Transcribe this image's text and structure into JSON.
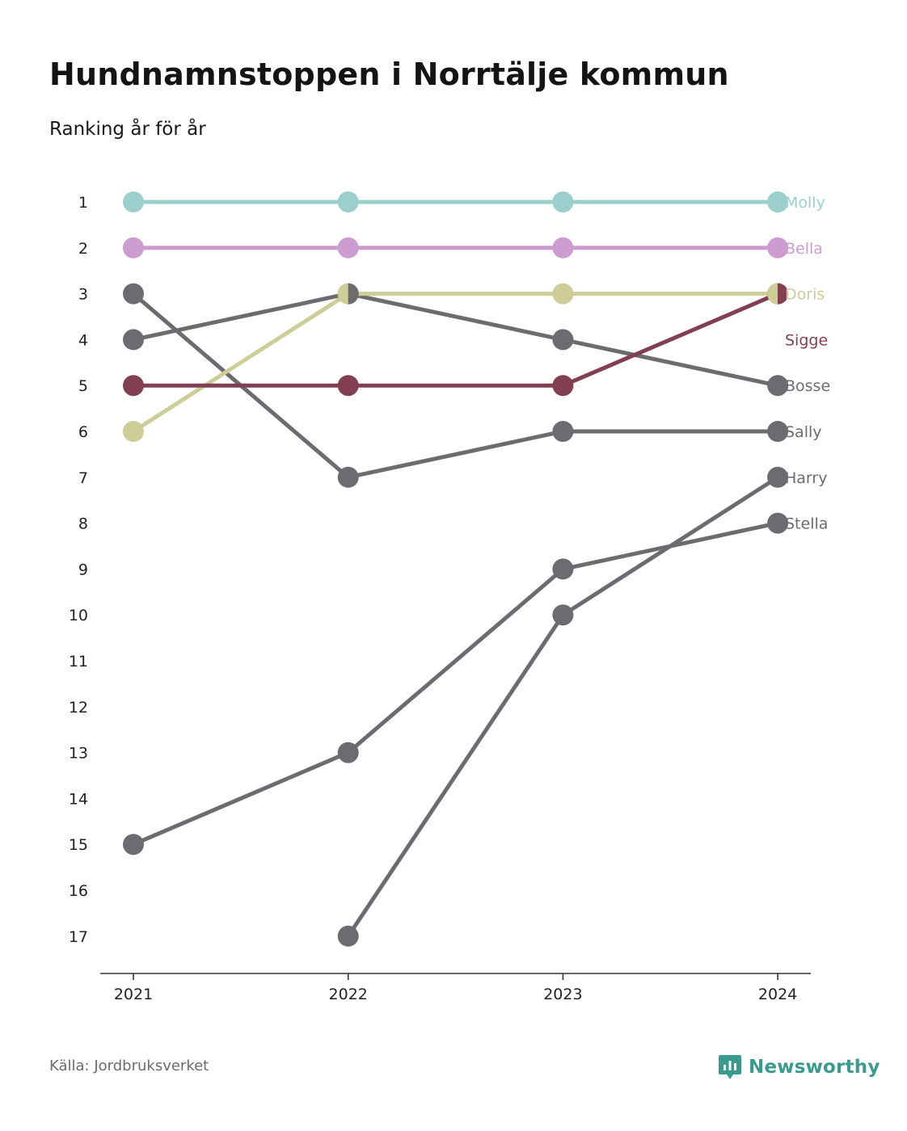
{
  "header": {
    "title": "Hundnamnstoppen i Norrtälje kommun",
    "subtitle": "Ranking år för år"
  },
  "footer": {
    "source": "Källa: Jordbruksverket",
    "brand": "Newsworthy",
    "brand_icon": "newsworthy-logo-icon"
  },
  "colors": {
    "molly": "#9bcfcc",
    "bella": "#cc9bd0",
    "doris": "#cdcd97",
    "sigge": "#833f52",
    "grey": "#6b6b70",
    "axis": "#333333",
    "brand": "#3a9a8f"
  },
  "chart_data": {
    "type": "line",
    "title": "Hundnamnstoppen i Norrtälje kommun",
    "subtitle": "Ranking år för år",
    "x": [
      "2021",
      "2022",
      "2023",
      "2024"
    ],
    "y_ticks": [
      "1",
      "2",
      "3",
      "4",
      "5",
      "6",
      "7",
      "8",
      "9",
      "10",
      "11",
      "12",
      "13",
      "14",
      "15",
      "16",
      "17"
    ],
    "ylim": [
      1,
      17
    ],
    "y_inverted": true,
    "grid": false,
    "legend": "end-of-line labels",
    "series": [
      {
        "name": "Molly",
        "values": [
          1,
          1,
          1,
          1
        ],
        "color": "#9bcfcc"
      },
      {
        "name": "Bella",
        "values": [
          2,
          2,
          2,
          2
        ],
        "color": "#cc9bd0"
      },
      {
        "name": "Doris",
        "values": [
          6,
          3,
          3,
          3
        ],
        "color": "#cdcd97"
      },
      {
        "name": "Sigge",
        "values": [
          5,
          5,
          5,
          3
        ],
        "color": "#833f52"
      },
      {
        "name": "Bosse",
        "values": [
          4,
          3,
          4,
          5
        ],
        "color": "#6b6b70"
      },
      {
        "name": "Sally",
        "values": [
          3,
          7,
          6,
          6
        ],
        "color": "#6b6b70"
      },
      {
        "name": "Harry",
        "values": [
          null,
          17,
          10,
          7
        ],
        "color": "#6b6b70"
      },
      {
        "name": "Stella",
        "values": [
          15,
          13,
          9,
          8
        ],
        "color": "#6b6b70"
      }
    ]
  }
}
